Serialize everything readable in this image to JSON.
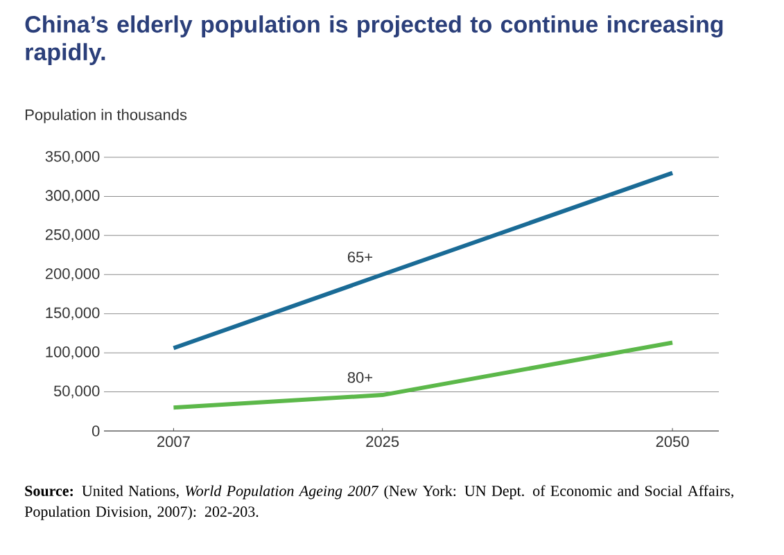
{
  "chart_data": {
    "type": "line",
    "title": "China’s elderly population is projected to continue increasing rapidly.",
    "ylabel": "Population in thousands",
    "x": [
      2007,
      2025,
      2050
    ],
    "series": [
      {
        "name": "65+",
        "color": "#1a6b96",
        "values": [
          106000,
          200000,
          330000
        ]
      },
      {
        "name": "80+",
        "color": "#5cb84a",
        "values": [
          30000,
          46000,
          113000
        ]
      }
    ],
    "xlim": [
      2001,
      2054
    ],
    "xticks": [
      2007,
      2025,
      2050
    ],
    "ylim": [
      0,
      350000
    ],
    "yticks": [
      0,
      {
        "value": 50000,
        "label": "50,000"
      },
      {
        "value": 100000,
        "label": "100,000"
      },
      {
        "value": 150000,
        "label": "150,000"
      },
      {
        "value": 200000,
        "label": "200,000"
      },
      {
        "value": 250000,
        "label": "250,000"
      },
      {
        "value": 300000,
        "label": "300,000"
      },
      {
        "value": 350000,
        "label": "350,000"
      }
    ],
    "grid": "y",
    "legend": false,
    "marker": "none",
    "line_style": "solid",
    "annotations": [
      "**Source:** United Nations, *World Population Ageing 2007* (New York: UN Dept. of Economic and Social Affairs, Population Division, 2007): 202-203."
    ]
  }
}
